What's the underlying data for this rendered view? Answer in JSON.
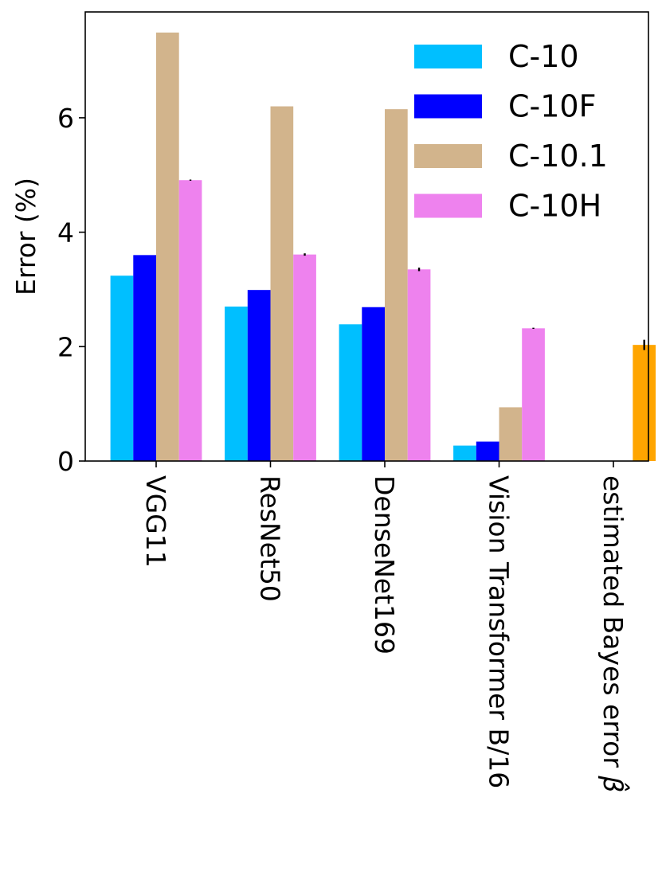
{
  "chart_data": {
    "type": "bar",
    "title": "",
    "xlabel": "",
    "ylabel": "Error (%)",
    "ylim": [
      0,
      7.85
    ],
    "yticks": [
      0,
      2,
      4,
      6
    ],
    "grid": false,
    "legend_position": "top-right",
    "categories": [
      "VGG11",
      "ResNet50",
      "DenseNet169",
      "Vision Transformer B/16",
      "estimated Bayes error"
    ],
    "category_suffix": {
      "estimated Bayes error": "β̂"
    },
    "series": [
      {
        "name": "C-10",
        "color": "#00bfff",
        "values": [
          3.24,
          2.7,
          2.39,
          0.27,
          null
        ],
        "errors": [
          null,
          null,
          null,
          null,
          null
        ]
      },
      {
        "name": "C-10F",
        "color": "#0000ff",
        "values": [
          3.6,
          2.99,
          2.69,
          0.34,
          null
        ],
        "errors": [
          null,
          null,
          null,
          null,
          null
        ]
      },
      {
        "name": "C-10.1",
        "color": "#d2b48c",
        "values": [
          7.49,
          6.2,
          6.15,
          0.94,
          null
        ],
        "errors": [
          null,
          null,
          null,
          null,
          null
        ]
      },
      {
        "name": "C-10H",
        "color": "#ee82ee",
        "values": [
          4.91,
          3.61,
          3.35,
          2.32,
          null
        ],
        "errors": [
          0.01,
          0.02,
          0.03,
          0.01,
          null
        ]
      }
    ],
    "extra_bar": {
      "category": "estimated Bayes error",
      "value": 2.03,
      "error": 0.09,
      "color": "#ffa500"
    }
  }
}
